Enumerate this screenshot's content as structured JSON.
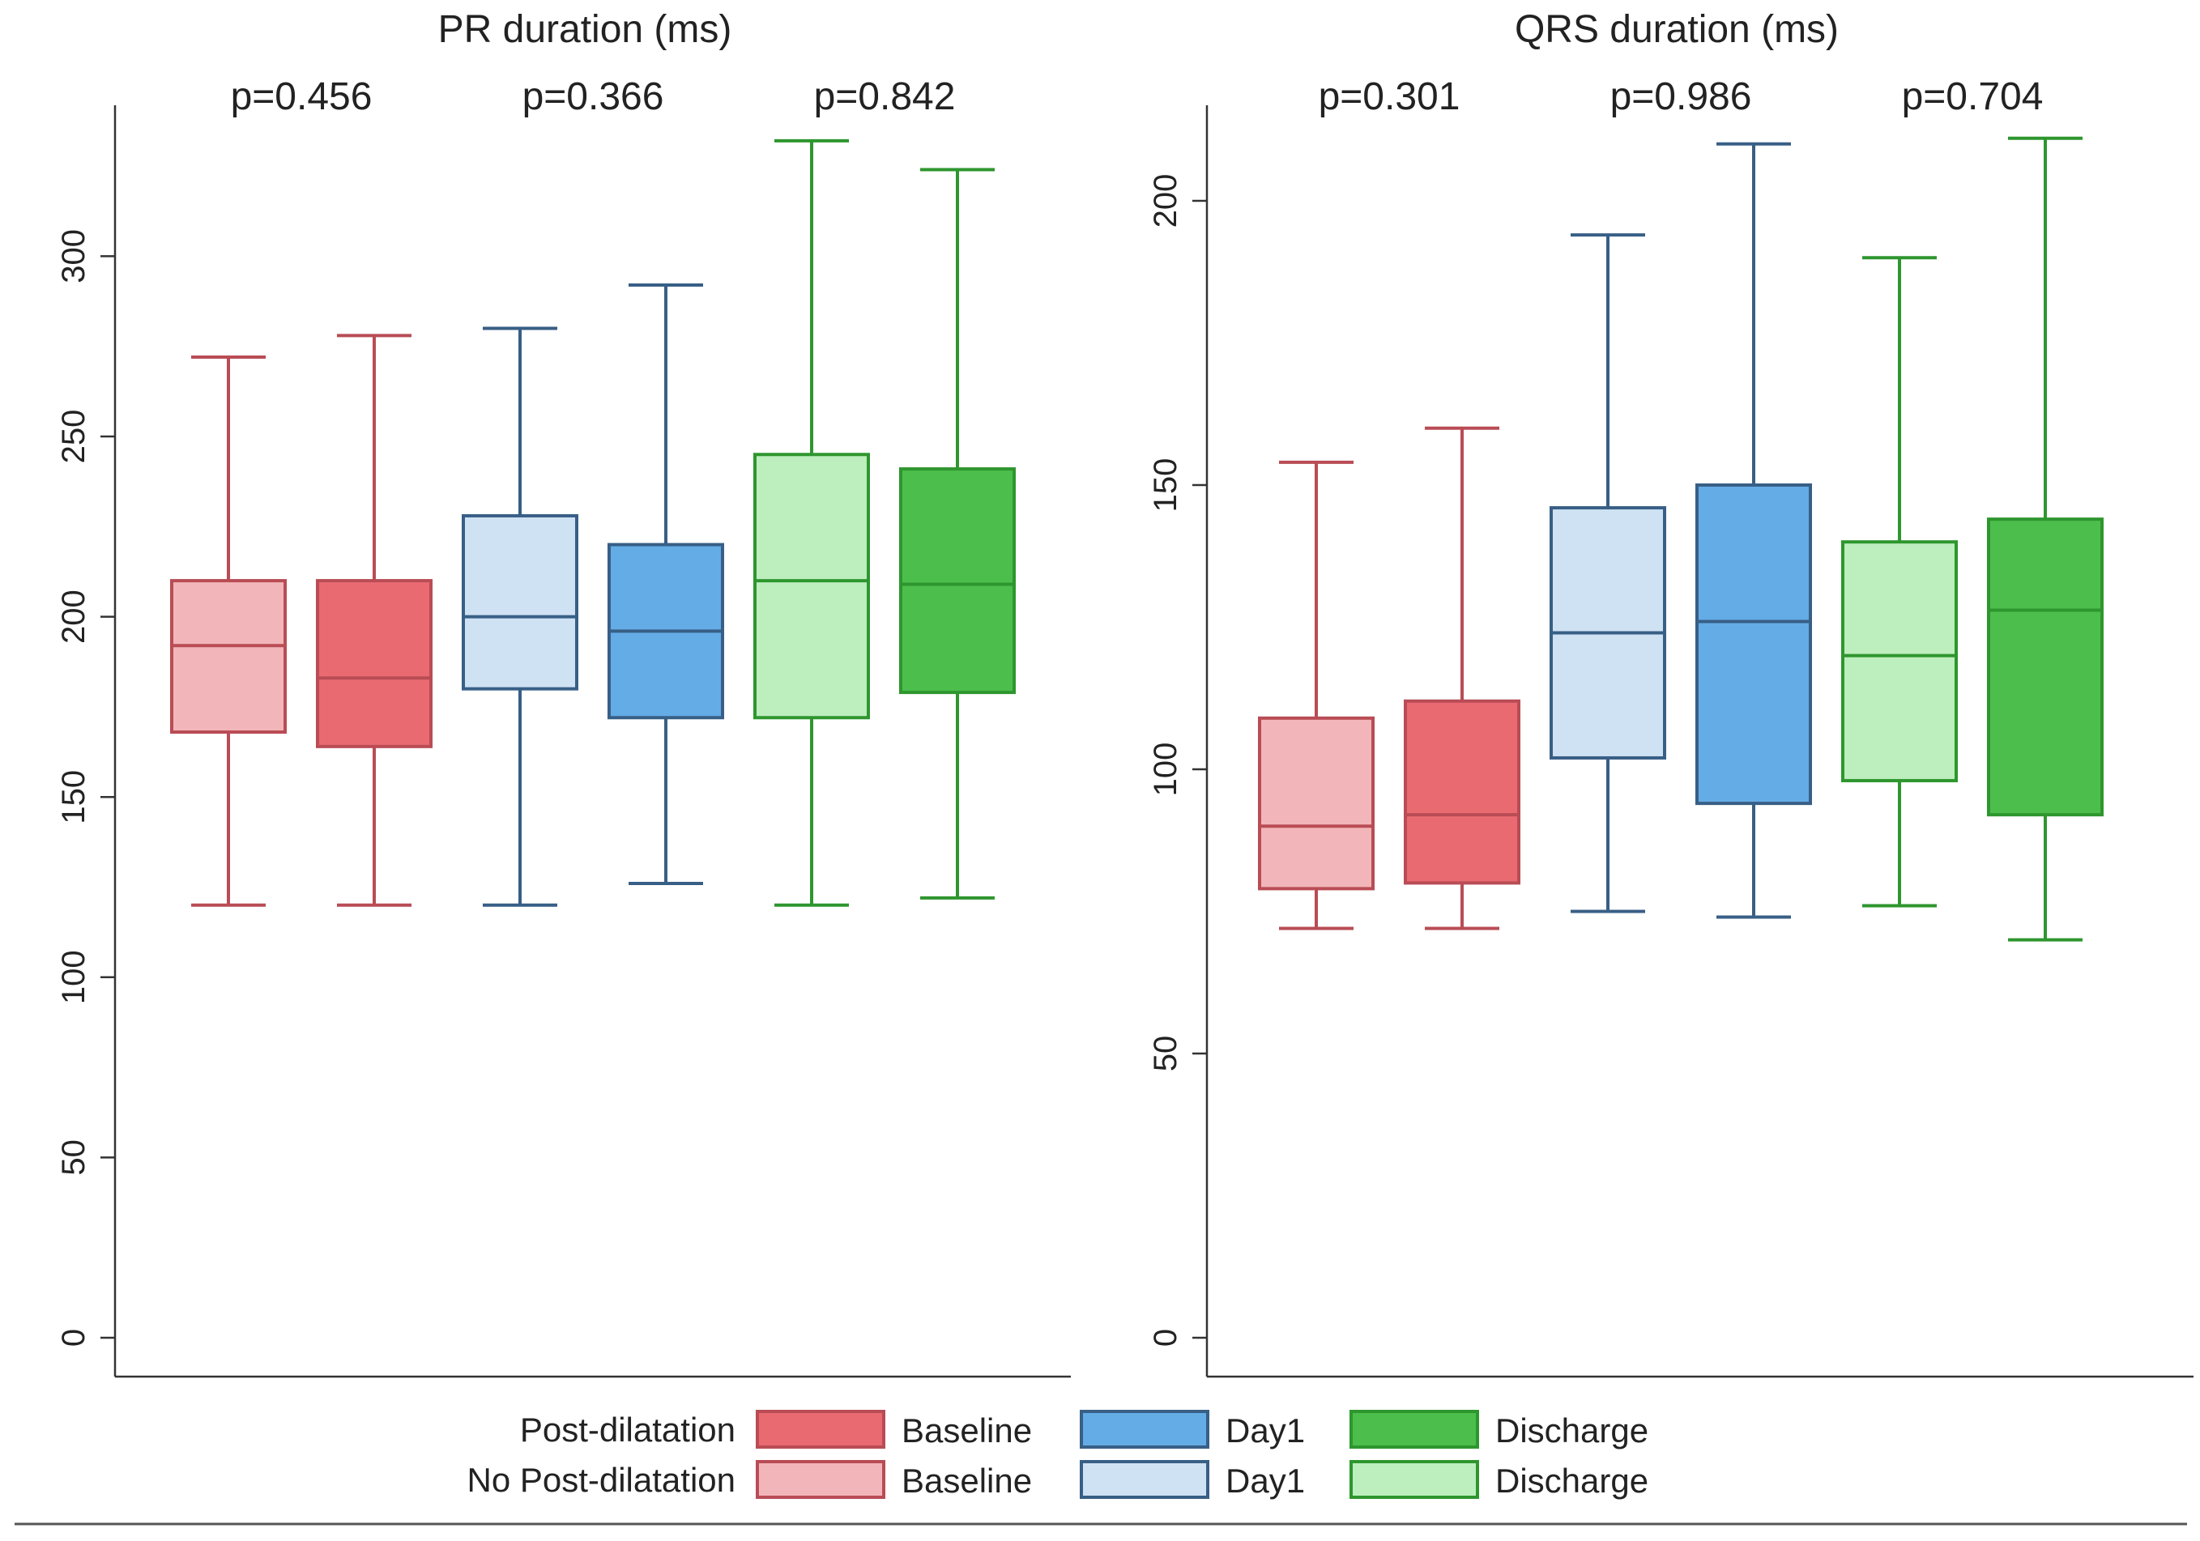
{
  "chart_data": [
    {
      "type": "box",
      "title": "PR duration (ms)",
      "ylim": [
        0,
        330
      ],
      "yticks": [
        0,
        50,
        100,
        150,
        200,
        250,
        300
      ],
      "p_values": [
        "p=0.456",
        "p=0.366",
        "p=0.842"
      ],
      "boxes": [
        {
          "group": "No Post-dilatation",
          "time": "Baseline",
          "min": 120,
          "q1": 168,
          "median": 192,
          "q3": 210,
          "max": 272
        },
        {
          "group": "Post-dilatation",
          "time": "Baseline",
          "min": 120,
          "q1": 164,
          "median": 183,
          "q3": 210,
          "max": 278
        },
        {
          "group": "No Post-dilatation",
          "time": "Day1",
          "min": 120,
          "q1": 180,
          "median": 200,
          "q3": 228,
          "max": 280
        },
        {
          "group": "Post-dilatation",
          "time": "Day1",
          "min": 126,
          "q1": 172,
          "median": 196,
          "q3": 220,
          "max": 292
        },
        {
          "group": "No Post-dilatation",
          "time": "Discharge",
          "min": 120,
          "q1": 172,
          "median": 210,
          "q3": 245,
          "max": 332
        },
        {
          "group": "Post-dilatation",
          "time": "Discharge",
          "min": 122,
          "q1": 179,
          "median": 209,
          "q3": 241,
          "max": 324
        }
      ]
    },
    {
      "type": "box",
      "title": "QRS duration (ms)",
      "ylim": [
        0,
        212
      ],
      "yticks": [
        0,
        50,
        100,
        150,
        200
      ],
      "p_values": [
        "p=0.301",
        "p=0.986",
        "p=0.704"
      ],
      "boxes": [
        {
          "group": "No Post-dilatation",
          "time": "Baseline",
          "min": 72,
          "q1": 79,
          "median": 90,
          "q3": 109,
          "max": 154
        },
        {
          "group": "Post-dilatation",
          "time": "Baseline",
          "min": 72,
          "q1": 80,
          "median": 92,
          "q3": 112,
          "max": 160
        },
        {
          "group": "No Post-dilatation",
          "time": "Day1",
          "min": 75,
          "q1": 102,
          "median": 124,
          "q3": 146,
          "max": 194
        },
        {
          "group": "Post-dilatation",
          "time": "Day1",
          "min": 74,
          "q1": 94,
          "median": 126,
          "q3": 150,
          "max": 210
        },
        {
          "group": "No Post-dilatation",
          "time": "Discharge",
          "min": 76,
          "q1": 98,
          "median": 120,
          "q3": 140,
          "max": 190
        },
        {
          "group": "Post-dilatation",
          "time": "Discharge",
          "min": 70,
          "q1": 92,
          "median": 128,
          "q3": 144,
          "max": 211
        }
      ]
    }
  ],
  "colors": {
    "Baseline": {
      "post_fill": "#ea6a71",
      "nopost_fill": "#f2b6ba",
      "line": "#b94c55"
    },
    "Day1": {
      "post_fill": "#64ace6",
      "nopost_fill": "#cfe2f3",
      "line": "#385f86"
    },
    "Discharge": {
      "post_fill": "#4cbe4c",
      "nopost_fill": "#bdeebe",
      "line": "#2e962e"
    }
  },
  "legend": {
    "rows": [
      {
        "label": "Post-dilatation",
        "variant": "post"
      },
      {
        "label": "No Post-dilatation",
        "variant": "nopost"
      }
    ],
    "times": [
      "Baseline",
      "Day1",
      "Discharge"
    ]
  }
}
